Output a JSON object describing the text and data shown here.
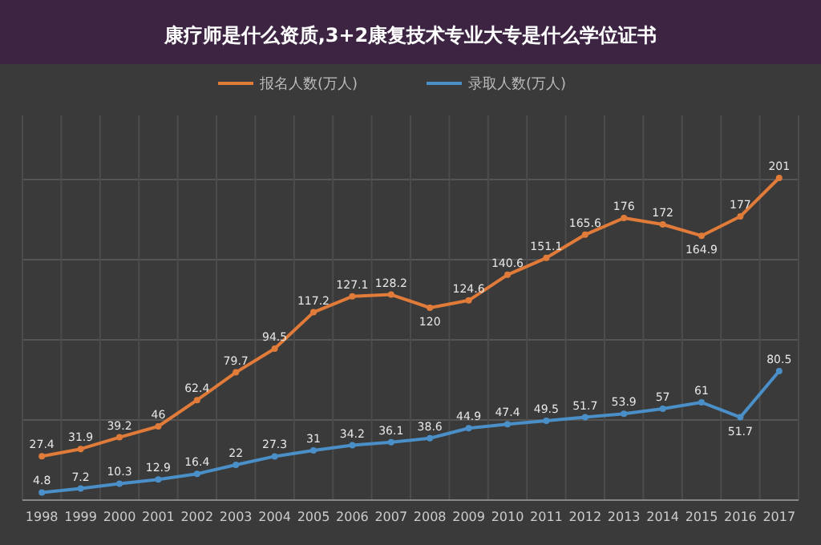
{
  "chart_data": {
    "type": "line",
    "title": "康疗师是什么资质,3+2康复技术专业大专是什么学位证书",
    "categories": [
      "1998",
      "1999",
      "2000",
      "2001",
      "2002",
      "2003",
      "2004",
      "2005",
      "2006",
      "2007",
      "2008",
      "2009",
      "2010",
      "2011",
      "2012",
      "2013",
      "2014",
      "2015",
      "2016",
      "2017"
    ],
    "series": [
      {
        "name": "报名人数(万人)",
        "color": "#e07b39",
        "values": [
          27.4,
          31.9,
          39.2,
          46,
          62.4,
          79.7,
          94.5,
          117.2,
          127.1,
          128.2,
          120,
          124.6,
          140.6,
          151.1,
          165.6,
          176,
          172,
          164.9,
          177,
          201
        ]
      },
      {
        "name": "录取人数(万人)",
        "color": "#4a8fc8",
        "values": [
          4.8,
          7.2,
          10.3,
          12.9,
          16.4,
          22,
          27.3,
          31,
          34.2,
          36.1,
          38.6,
          44.9,
          47.4,
          49.5,
          51.7,
          53.9,
          57,
          61,
          51.7,
          80.5
        ]
      }
    ],
    "ylim": [
      0,
      240
    ],
    "yticks": [
      {
        "value": 0,
        "label": null
      },
      {
        "value": 50,
        "label": null
      },
      {
        "value": 100,
        "label": null
      },
      {
        "value": 150,
        "label": null
      },
      {
        "value": 200,
        "label": null
      }
    ],
    "tick_labels": "x",
    "grid": true,
    "legend": "top",
    "marker": "circle",
    "line_style": "solid",
    "data_labels": true
  }
}
